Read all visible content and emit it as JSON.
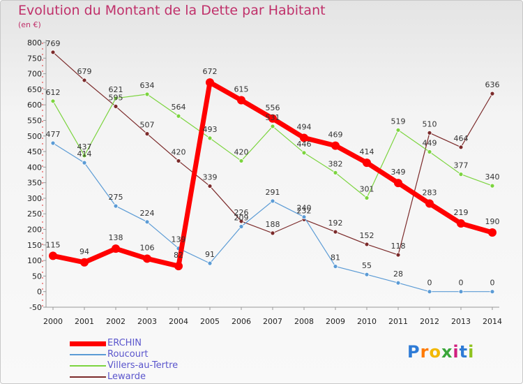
{
  "title": "Evolution du Montant de la Dette par Habitant",
  "unit_note": "(en €)",
  "logo": "Proxiti",
  "chart_data": {
    "type": "line",
    "title": "Evolution du Montant de la Dette par Habitant",
    "ylabel": "(en €)",
    "x": [
      "2000",
      "2001",
      "2002",
      "2003",
      "2004",
      "2005",
      "2006",
      "2007",
      "2008",
      "2009",
      "2010",
      "2011",
      "2012",
      "2013",
      "2014"
    ],
    "yticks": [
      "-50",
      "0",
      "50",
      "100",
      "150",
      "200",
      "250",
      "300",
      "350",
      "400",
      "450",
      "500",
      "550",
      "600",
      "650",
      "700",
      "750",
      "800"
    ],
    "ylim": [
      -50,
      800
    ],
    "grid": false,
    "legend_position": "bottom-left",
    "series": [
      {
        "name": "ERCHIN",
        "color": "#ff0000",
        "values": [
          115,
          94,
          138,
          106,
          82,
          672,
          615,
          556,
          494,
          469,
          414,
          349,
          283,
          219,
          190
        ],
        "labels": [
          "115",
          "94",
          "138",
          "106",
          "82",
          "672",
          "615",
          "556",
          "494",
          "469",
          "414",
          "349",
          "283",
          "219",
          "190"
        ]
      },
      {
        "name": "Roucourt",
        "color": "#5b9bd5",
        "values": [
          477,
          414,
          275,
          224,
          139,
          91,
          209,
          291,
          240,
          81,
          55,
          28,
          0,
          0,
          0
        ],
        "labels": [
          "477",
          "414",
          "275",
          "224",
          "139",
          "91",
          "209",
          "291",
          "240",
          "81",
          "55",
          "28",
          "0",
          "0",
          "0"
        ]
      },
      {
        "name": "Villers-au-Tertre",
        "color": "#7cd43f",
        "values": [
          612,
          437,
          621,
          634,
          564,
          493,
          420,
          531,
          446,
          382,
          301,
          519,
          449,
          377,
          340
        ],
        "labels": [
          "612",
          "437",
          "621",
          "634",
          "564",
          "493",
          "420",
          "531",
          "446",
          "382",
          "301",
          "519",
          "449",
          "377",
          "340"
        ]
      },
      {
        "name": "Lewarde",
        "color": "#7b2a2a",
        "values": [
          769,
          679,
          595,
          507,
          420,
          339,
          226,
          188,
          232,
          192,
          152,
          118,
          510,
          464,
          636
        ],
        "labels": [
          "769",
          "679",
          "595",
          "507",
          "420",
          "339",
          "226",
          "188",
          "232",
          "192",
          "152",
          "118",
          "510",
          "464",
          "636"
        ]
      }
    ]
  }
}
